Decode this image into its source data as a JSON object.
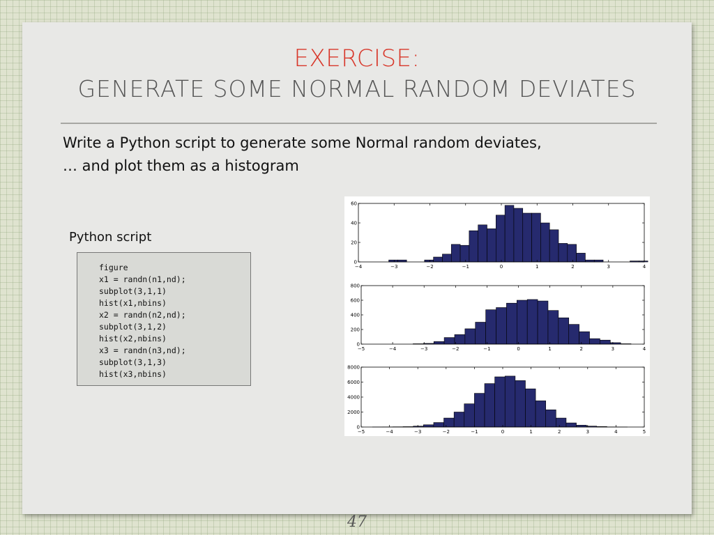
{
  "slide": {
    "title_line1": "EXERCISE:",
    "title_line2": "GENERATE SOME NORMAL RANDOM DEVIATES",
    "body_line1": "Write a Python script to generate some Normal random deviates,",
    "body_line2": "… and plot them as a histogram",
    "script_label": "Python script",
    "code_lines": [
      "figure",
      "x1 = randn(n1,nd);",
      "subplot(3,1,1)",
      "hist(x1,nbins)",
      "x2 = randn(n2,nd);",
      "subplot(3,1,2)",
      "hist(x2,nbins)",
      "x3 = randn(n3,nd);",
      "subplot(3,1,3)",
      "hist(x3,nbins)"
    ],
    "page_number": "47"
  },
  "colors": {
    "title_accent": "#d8382b",
    "bar_fill": "#262a6e",
    "bar_edge": "#000000"
  },
  "chart_data": [
    {
      "type": "bar",
      "xlim": [
        -4,
        4
      ],
      "ylim": [
        0,
        60
      ],
      "xticks": [
        -4,
        -3,
        -2,
        -1,
        0,
        1,
        2,
        3,
        4
      ],
      "yticks": [
        0,
        20,
        40,
        60
      ],
      "xtick_labels": [
        "−4",
        "−3",
        "−2",
        "−1",
        "0",
        "1",
        "2",
        "3",
        "4"
      ],
      "ytick_labels": [
        "0",
        "20",
        "40",
        "60"
      ],
      "bin_start": -3.4,
      "bin_width": 0.25,
      "values": [
        0,
        2,
        2,
        0,
        0,
        2,
        5,
        8,
        18,
        17,
        32,
        38,
        34,
        48,
        58,
        55,
        50,
        50,
        40,
        33,
        19,
        18,
        9,
        2,
        2,
        0,
        0,
        0,
        1,
        1
      ]
    },
    {
      "type": "bar",
      "xlim": [
        -5,
        4
      ],
      "ylim": [
        0,
        800
      ],
      "xticks": [
        -5,
        -4,
        -3,
        -2,
        -1,
        0,
        1,
        2,
        3,
        4
      ],
      "yticks": [
        0,
        200,
        400,
        600,
        800
      ],
      "xtick_labels": [
        "−5",
        "−4",
        "−3",
        "−2",
        "−1",
        "0",
        "1",
        "2",
        "3",
        "4"
      ],
      "ytick_labels": [
        "0",
        "200",
        "400",
        "600",
        "800"
      ],
      "bin_start": -3.35,
      "bin_width": 0.33,
      "values": [
        5,
        10,
        35,
        90,
        130,
        210,
        300,
        470,
        500,
        560,
        600,
        610,
        590,
        460,
        360,
        270,
        170,
        75,
        55,
        20,
        5
      ]
    },
    {
      "type": "bar",
      "xlim": [
        -5,
        5
      ],
      "ylim": [
        0,
        8000
      ],
      "xticks": [
        -5,
        -4,
        -3,
        -2,
        -1,
        0,
        1,
        2,
        3,
        4,
        5
      ],
      "yticks": [
        0,
        2000,
        4000,
        6000,
        8000
      ],
      "xtick_labels": [
        "−5",
        "−4",
        "−3",
        "−2",
        "−1",
        "0",
        "1",
        "2",
        "3",
        "4",
        "5"
      ],
      "ytick_labels": [
        "0",
        "2000",
        "4000",
        "6000",
        "8000"
      ],
      "bin_start": -4.6,
      "bin_width": 0.36,
      "values": [
        10,
        20,
        30,
        50,
        120,
        300,
        600,
        1200,
        2000,
        3100,
        4500,
        5800,
        6700,
        6800,
        6200,
        5100,
        3500,
        2300,
        1200,
        550,
        250,
        120,
        60,
        20,
        5
      ]
    }
  ]
}
